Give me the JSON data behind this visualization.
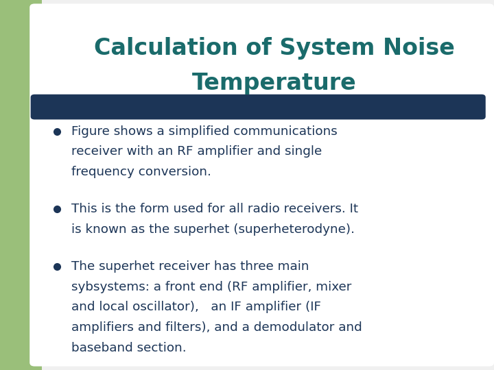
{
  "title_line1": "Calculation of System Noise",
  "title_line2": "Temperature",
  "title_color": "#1a6b6b",
  "title_fontsize": 24,
  "background_color": "#f0f0f0",
  "slide_bg": "#ffffff",
  "left_bar_color": "#9abf7a",
  "divider_color": "#1c3557",
  "bullet_color": "#1c3557",
  "text_color": "#1c3557",
  "bullet_fontsize": 13.2,
  "bullet1_lines": [
    "Figure shows a simplified communications",
    "receiver with an RF amplifier and single",
    "frequency conversion."
  ],
  "bullet2_lines": [
    "This is the form used for all radio receivers. It",
    "is known as the superhet (superheterodyne)."
  ],
  "bullet3_lines": [
    "The superhet receiver has three main",
    "sybsystems: a front end (RF amplifier, mixer",
    "and local oscillator),   an IF amplifier (IF",
    "amplifiers and filters), and a demodulator and",
    "baseband section."
  ]
}
